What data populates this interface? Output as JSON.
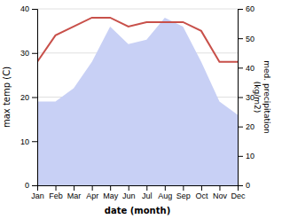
{
  "chart_data": {
    "type": "line",
    "categories": [
      "Jan",
      "Feb",
      "Mar",
      "Apr",
      "May",
      "Jun",
      "Jul",
      "Aug",
      "Sep",
      "Oct",
      "Nov",
      "Dec"
    ],
    "series": [
      {
        "type": "area",
        "axis": "y2",
        "color": "#c8d0f5",
        "values": [
          28.5,
          28.5,
          33,
          42,
          54,
          48,
          49.5,
          57,
          54,
          42,
          28.5,
          24
        ]
      },
      {
        "type": "line",
        "color": "#c8504a",
        "values": [
          28,
          34,
          36,
          38,
          38,
          36,
          37,
          37,
          37,
          35,
          28,
          28
        ]
      }
    ],
    "x_label": "date (month)",
    "y_label": "max temp (C)",
    "y2_label": "med. precipitation\n(kg/m2)",
    "ylim": [
      0,
      40
    ],
    "yticks": [
      0,
      10,
      20,
      30,
      40
    ],
    "y2lim": [
      0,
      60
    ],
    "y2ticks": [
      0,
      10,
      20,
      30,
      40,
      50,
      60
    ],
    "grid": true
  }
}
